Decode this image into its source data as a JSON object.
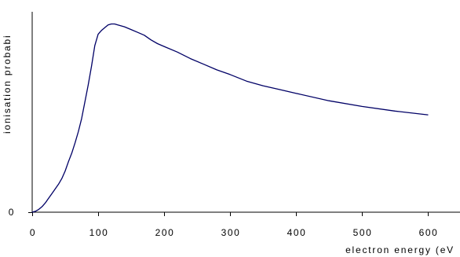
{
  "chart_data": {
    "type": "line",
    "title": "",
    "xlabel": "electron energy (eV",
    "ylabel": "ionisation probabi",
    "xlim": [
      0,
      650
    ],
    "ylim": [
      0,
      1.07
    ],
    "x_ticks": [
      0,
      100,
      200,
      300,
      400,
      500,
      600
    ],
    "x_tick_labels": [
      "0",
      "100",
      "200",
      "300",
      "400",
      "500",
      "600"
    ],
    "y_ticks": [
      0
    ],
    "y_tick_labels": [
      "0"
    ],
    "grid": false,
    "legend": "none",
    "line_color": "#000066",
    "series": [
      {
        "x": [
          0,
          5,
          10,
          15,
          20,
          25,
          30,
          35,
          40,
          45,
          50,
          55,
          60,
          65,
          70,
          75,
          80,
          85,
          90,
          95,
          100,
          105,
          110,
          115,
          120,
          125,
          130,
          140,
          150,
          160,
          170,
          180,
          190,
          200,
          220,
          240,
          260,
          280,
          300,
          325,
          350,
          375,
          400,
          450,
          500,
          550,
          600
        ],
        "y": [
          0,
          0.005,
          0.015,
          0.03,
          0.05,
          0.075,
          0.1,
          0.125,
          0.15,
          0.18,
          0.22,
          0.27,
          0.315,
          0.37,
          0.43,
          0.5,
          0.59,
          0.68,
          0.78,
          0.89,
          0.95,
          0.97,
          0.985,
          1.0,
          1.005,
          1.005,
          1.0,
          0.99,
          0.975,
          0.96,
          0.945,
          0.92,
          0.9,
          0.885,
          0.855,
          0.82,
          0.79,
          0.76,
          0.735,
          0.7,
          0.675,
          0.655,
          0.635,
          0.595,
          0.565,
          0.54,
          0.52
        ]
      }
    ]
  }
}
